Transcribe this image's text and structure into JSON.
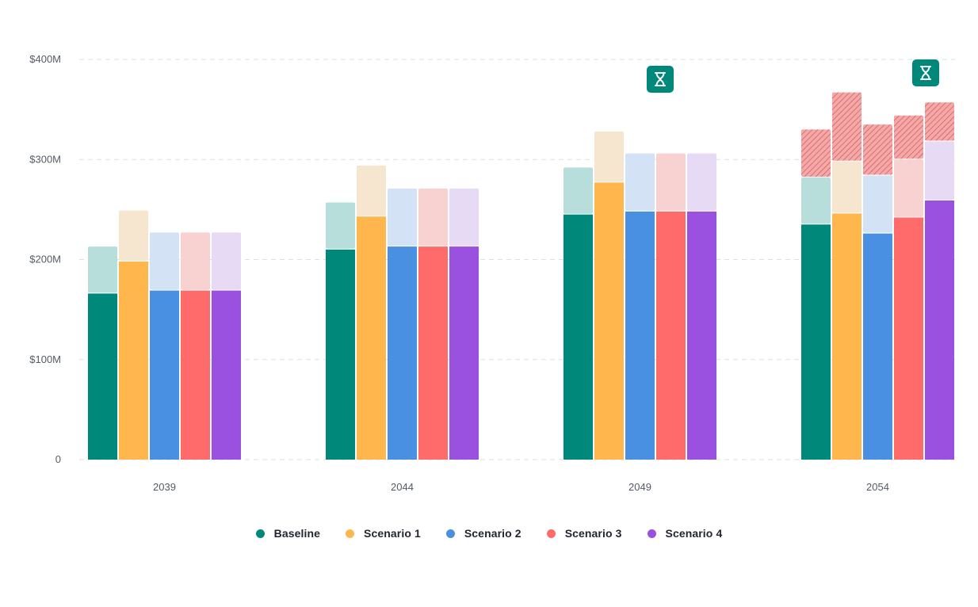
{
  "chart_data": {
    "type": "bar",
    "stacked_segments": [
      "base",
      "uncertainty",
      "additional_risk"
    ],
    "categories": [
      "2039",
      "2044",
      "2049",
      "2054"
    ],
    "y_ticks": [
      "0",
      "$100M",
      "$200M",
      "$300M",
      "$400M"
    ],
    "ylim": [
      0,
      400
    ],
    "grid": true,
    "legend_position": "bottom-center",
    "series": [
      {
        "name": "Baseline",
        "color": "#00897b",
        "light_color": "#b8dedb",
        "base": [
          166,
          210,
          245,
          235
        ],
        "uncertainty": [
          47,
          47,
          47,
          47
        ],
        "additional_risk": [
          0,
          0,
          0,
          48
        ]
      },
      {
        "name": "Scenario 1",
        "color": "#ffb74d",
        "light_color": "#f7e6cf",
        "base": [
          198,
          243,
          277,
          246
        ],
        "uncertainty": [
          51,
          51,
          51,
          52
        ],
        "additional_risk": [
          0,
          0,
          0,
          69
        ]
      },
      {
        "name": "Scenario 2",
        "color": "#4a90e2",
        "light_color": "#d3e2f4",
        "base": [
          169,
          213,
          248,
          226
        ],
        "uncertainty": [
          58,
          58,
          58,
          58
        ],
        "additional_risk": [
          0,
          0,
          0,
          51
        ]
      },
      {
        "name": "Scenario 3",
        "color": "#ff6b6b",
        "light_color": "#f8d1d1",
        "base": [
          169,
          213,
          248,
          242
        ],
        "uncertainty": [
          58,
          58,
          58,
          58
        ],
        "additional_risk": [
          0,
          0,
          0,
          44
        ]
      },
      {
        "name": "Scenario 4",
        "color": "#9b51e0",
        "light_color": "#e6daf5",
        "base": [
          169,
          213,
          248,
          259
        ],
        "uncertainty": [
          58,
          58,
          58,
          59
        ],
        "additional_risk": [
          0,
          0,
          0,
          39
        ]
      }
    ],
    "markers": [
      {
        "category": "2049",
        "icon": "hourglass-icon",
        "color": "#00897b"
      },
      {
        "category": "2054",
        "icon": "hourglass-icon",
        "color": "#00897b"
      }
    ],
    "risk_color": "#e57373"
  }
}
